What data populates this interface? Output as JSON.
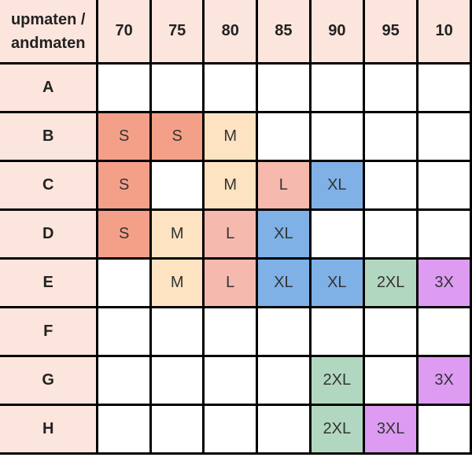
{
  "table": {
    "corner_label": [
      "upmaten /",
      "andmaten"
    ],
    "columns": [
      "70",
      "75",
      "80",
      "85",
      "90",
      "95",
      "10"
    ],
    "rows": [
      {
        "label": "A",
        "cells": [
          "",
          "",
          "",
          "",
          "",
          "",
          ""
        ]
      },
      {
        "label": "B",
        "cells": [
          "S",
          "S",
          "M",
          "",
          "",
          "",
          ""
        ]
      },
      {
        "label": "C",
        "cells": [
          "S",
          "",
          "M",
          "L",
          "XL",
          "",
          ""
        ]
      },
      {
        "label": "D",
        "cells": [
          "S",
          "M",
          "L",
          "XL",
          "",
          "",
          ""
        ]
      },
      {
        "label": "E",
        "cells": [
          "",
          "M",
          "L",
          "XL",
          "XL",
          "2XL",
          "3X"
        ]
      },
      {
        "label": "F",
        "cells": [
          "",
          "",
          "",
          "",
          "",
          "",
          ""
        ]
      },
      {
        "label": "G",
        "cells": [
          "",
          "",
          "",
          "",
          "2XL",
          "",
          "3X"
        ]
      },
      {
        "label": "H",
        "cells": [
          "",
          "",
          "",
          "",
          "2XL",
          "3XL",
          ""
        ]
      }
    ]
  },
  "colors": {
    "header_bg": "#fce5dd",
    "S": "#f4a089",
    "M": "#fde3c2",
    "L": "#f5b9ae",
    "XL": "#7fb1e6",
    "2XL": "#b2d7c1",
    "3XL": "#dd9cf2",
    "3X": "#dd9cf2"
  }
}
